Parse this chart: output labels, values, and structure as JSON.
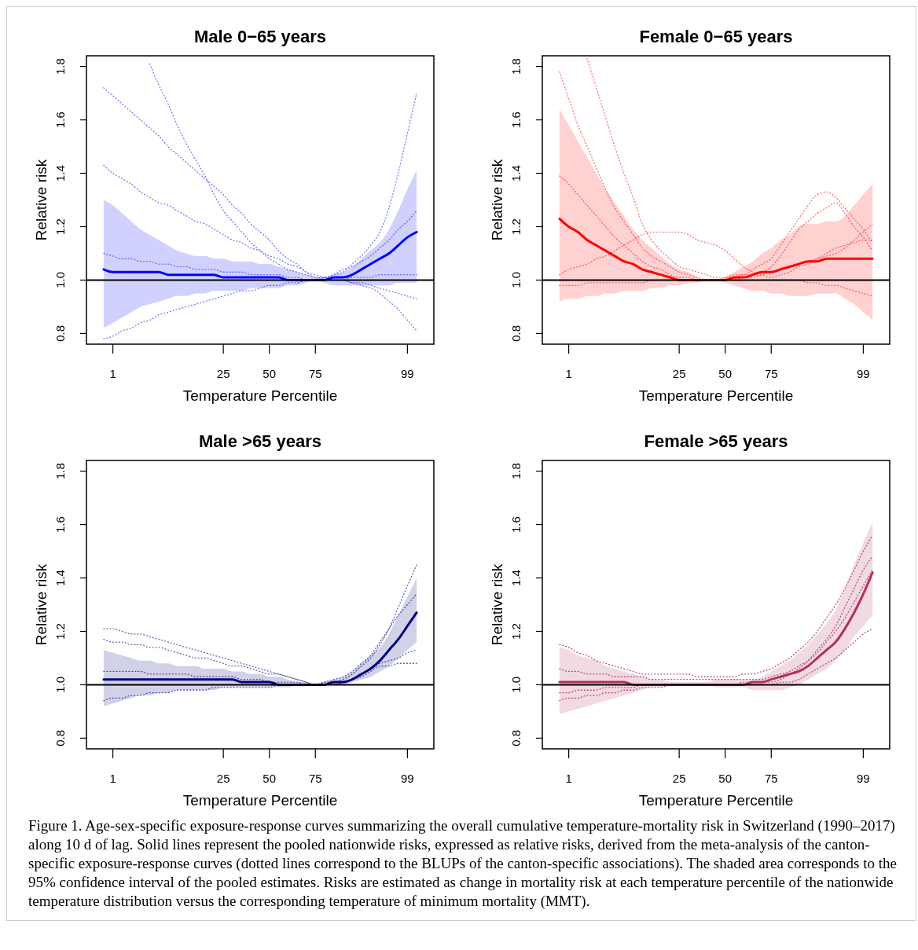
{
  "chart_data": [
    {
      "type": "line",
      "title": "Male 0−65 years",
      "xlabel": "Temperature Percentile",
      "ylabel": "Relative risk",
      "categories": [
        null,
        "1",
        null,
        null,
        null,
        null,
        null,
        null,
        null,
        null,
        null,
        null,
        null,
        "25",
        null,
        null,
        null,
        null,
        "50",
        null,
        null,
        null,
        null,
        "75",
        null,
        null,
        null,
        null,
        null,
        null,
        null,
        null,
        null,
        "99",
        null
      ],
      "ylim": [
        0.76,
        1.84
      ],
      "yticks": [
        {
          "value": 0.8,
          "label": "0.8"
        },
        {
          "value": 1.0,
          "label": "1.0"
        },
        {
          "value": 1.2,
          "label": "1.2"
        },
        {
          "value": 1.4,
          "label": "1.4"
        },
        {
          "value": 1.6,
          "label": "1.6"
        },
        {
          "value": 1.8,
          "label": "1.8"
        }
      ],
      "ref_lines": [
        {
          "axis": "y",
          "value": 1.0,
          "color": "#000000"
        }
      ],
      "series": [
        {
          "color": "#7777ff",
          "line_style": "dotted",
          "values": [
            1.72,
            1.69,
            1.66,
            1.63,
            1.6,
            1.57,
            1.54,
            1.5,
            1.47,
            1.44,
            1.41,
            1.38,
            1.35,
            1.32,
            1.28,
            1.25,
            1.21,
            1.18,
            1.15,
            1.11,
            1.08,
            1.06,
            1.03,
            1.02,
            1.01,
            1.0,
            1.0,
            1.01,
            1.01,
            1.01,
            1.02,
            1.02,
            1.02,
            1.02,
            1.02
          ]
        },
        {
          "color": "#7777ff",
          "line_style": "dotted",
          "values": [
            null,
            null,
            null,
            null,
            null,
            1.81,
            1.73,
            1.66,
            1.58,
            1.51,
            1.45,
            1.39,
            1.32,
            1.26,
            1.22,
            1.18,
            1.14,
            1.11,
            1.08,
            1.06,
            1.04,
            1.03,
            1.02,
            1.01,
            1.0,
            1.0,
            1.0,
            0.99,
            0.98,
            0.97,
            0.95,
            0.92,
            0.89,
            0.85,
            0.81
          ]
        },
        {
          "color": "#7777ff",
          "line_style": "dotted",
          "values": [
            1.1,
            1.09,
            1.08,
            1.08,
            1.07,
            1.07,
            1.06,
            1.06,
            1.05,
            1.05,
            1.04,
            1.04,
            1.04,
            1.03,
            1.03,
            1.03,
            1.02,
            1.02,
            1.02,
            1.02,
            1.01,
            1.01,
            1.0,
            1.0,
            1.01,
            1.02,
            1.03,
            1.06,
            1.09,
            1.13,
            1.18,
            1.27,
            1.4,
            1.55,
            1.7
          ]
        },
        {
          "color": "#7777ff",
          "line_style": "dotted",
          "values": [
            1.43,
            1.4,
            1.38,
            1.36,
            1.33,
            1.31,
            1.29,
            1.28,
            1.26,
            1.24,
            1.22,
            1.21,
            1.19,
            1.17,
            1.15,
            1.14,
            1.12,
            1.11,
            1.09,
            1.08,
            1.06,
            1.05,
            1.03,
            1.01,
            1.01,
            1.0,
            1.0,
            0.99,
            0.99,
            0.98,
            0.97,
            0.96,
            0.95,
            0.94,
            0.93
          ]
        },
        {
          "color": "#7777ff",
          "line_style": "dotted",
          "values": [
            0.78,
            0.79,
            0.81,
            0.82,
            0.84,
            0.85,
            0.87,
            0.88,
            0.89,
            0.9,
            0.91,
            0.92,
            0.93,
            0.94,
            0.95,
            0.96,
            0.96,
            0.97,
            0.98,
            0.98,
            0.99,
            0.99,
            1.0,
            1.0,
            1.01,
            1.02,
            1.04,
            1.05,
            1.07,
            1.09,
            1.12,
            1.15,
            1.19,
            1.22,
            1.26
          ]
        },
        {
          "color": "#0000ff",
          "line_style": "solid",
          "values": [
            1.04,
            1.03,
            1.03,
            1.03,
            1.03,
            1.03,
            1.03,
            1.02,
            1.02,
            1.02,
            1.02,
            1.02,
            1.02,
            1.01,
            1.01,
            1.01,
            1.01,
            1.01,
            1.01,
            1.01,
            1.0,
            1.0,
            1.0,
            1.0,
            1.0,
            1.01,
            1.01,
            1.02,
            1.04,
            1.06,
            1.08,
            1.1,
            1.13,
            1.16,
            1.18
          ],
          "lower": [
            0.82,
            0.84,
            0.86,
            0.88,
            0.9,
            0.91,
            0.92,
            0.93,
            0.94,
            0.94,
            0.95,
            0.95,
            0.96,
            0.96,
            0.96,
            0.96,
            0.97,
            0.97,
            0.97,
            0.97,
            0.98,
            0.98,
            0.99,
            1.0,
            0.99,
            0.98,
            0.98,
            0.98,
            0.98,
            0.98,
            0.98,
            0.98,
            0.99,
            0.99,
            0.99
          ],
          "upper": [
            1.3,
            1.28,
            1.25,
            1.22,
            1.19,
            1.17,
            1.15,
            1.13,
            1.11,
            1.1,
            1.09,
            1.09,
            1.08,
            1.08,
            1.07,
            1.07,
            1.07,
            1.06,
            1.06,
            1.05,
            1.04,
            1.03,
            1.02,
            1.01,
            1.01,
            1.02,
            1.03,
            1.05,
            1.08,
            1.11,
            1.14,
            1.19,
            1.26,
            1.34,
            1.41
          ]
        }
      ]
    },
    {
      "type": "line",
      "title": "Female 0−65 years",
      "xlabel": "Temperature Percentile",
      "ylabel": "Relative risk",
      "categories": [
        null,
        "1",
        null,
        null,
        null,
        null,
        null,
        null,
        null,
        null,
        null,
        null,
        null,
        "25",
        null,
        null,
        null,
        null,
        "50",
        null,
        null,
        null,
        null,
        "75",
        null,
        null,
        null,
        null,
        null,
        null,
        null,
        null,
        null,
        "99",
        null
      ],
      "ylim": [
        0.76,
        1.84
      ],
      "yticks": [
        {
          "value": 0.8,
          "label": "0.8"
        },
        {
          "value": 1.0,
          "label": "1.0"
        },
        {
          "value": 1.2,
          "label": "1.2"
        },
        {
          "value": 1.4,
          "label": "1.4"
        },
        {
          "value": 1.6,
          "label": "1.6"
        },
        {
          "value": 1.8,
          "label": "1.8"
        }
      ],
      "ref_lines": [
        {
          "axis": "y",
          "value": 1.0,
          "color": "#000000"
        }
      ],
      "series": [
        {
          "color": "#ff6f6f",
          "line_style": "dotted",
          "values": [
            null,
            null,
            null,
            1.83,
            1.72,
            1.61,
            1.5,
            1.4,
            1.31,
            1.21,
            1.15,
            1.11,
            1.08,
            1.05,
            1.04,
            1.03,
            1.02,
            1.01,
            1.01,
            1.01,
            1.02,
            1.02,
            1.03,
            1.05,
            1.09,
            1.14,
            1.19,
            1.22,
            1.25,
            1.27,
            1.29,
            1.25,
            1.2,
            1.16,
            1.11
          ]
        },
        {
          "color": "#ff6f6f",
          "line_style": "dotted",
          "values": [
            1.78,
            1.68,
            1.58,
            1.5,
            1.42,
            1.34,
            1.27,
            1.22,
            1.17,
            1.12,
            1.09,
            1.07,
            1.05,
            1.03,
            1.02,
            1.01,
            1.0,
            1.0,
            1.01,
            1.02,
            1.02,
            1.04,
            1.06,
            1.08,
            1.13,
            1.18,
            1.23,
            1.28,
            1.32,
            1.33,
            1.31,
            1.27,
            1.23,
            1.19,
            1.14
          ]
        },
        {
          "color": "#ff6f6f",
          "line_style": "dotted",
          "values": [
            1.02,
            1.04,
            1.05,
            1.06,
            1.08,
            1.09,
            1.11,
            1.13,
            1.15,
            1.17,
            1.18,
            1.18,
            1.18,
            1.18,
            1.17,
            1.15,
            1.14,
            1.13,
            1.11,
            1.08,
            1.05,
            1.03,
            1.02,
            1.01,
            1.02,
            1.03,
            1.05,
            1.06,
            1.08,
            1.1,
            1.12,
            1.13,
            1.14,
            1.15,
            1.15
          ]
        },
        {
          "color": "#ff6f6f",
          "line_style": "dotted",
          "values": [
            1.39,
            1.36,
            1.32,
            1.28,
            1.24,
            1.2,
            1.16,
            1.13,
            1.1,
            1.07,
            1.05,
            1.04,
            1.02,
            1.01,
            1.01,
            1.0,
            1.0,
            1.0,
            1.0,
            1.0,
            1.01,
            1.01,
            1.02,
            1.03,
            1.04,
            1.05,
            1.06,
            1.07,
            1.08,
            1.09,
            1.1,
            1.12,
            1.15,
            1.18,
            1.21
          ]
        },
        {
          "color": "#ff6f6f",
          "line_style": "dotted",
          "values": [
            0.98,
            0.98,
            0.98,
            0.99,
            0.99,
            0.99,
            0.99,
            0.99,
            0.99,
            0.99,
            1.0,
            1.0,
            1.0,
            1.0,
            1.0,
            1.0,
            1.0,
            1.0,
            1.0,
            1.0,
            1.0,
            1.0,
            1.0,
            1.0,
            1.0,
            1.0,
            1.0,
            0.99,
            0.99,
            0.98,
            0.98,
            0.97,
            0.96,
            0.95,
            0.94
          ]
        },
        {
          "color": "#ff0000",
          "line_style": "solid",
          "values": [
            1.23,
            1.2,
            1.18,
            1.15,
            1.13,
            1.11,
            1.09,
            1.07,
            1.06,
            1.04,
            1.03,
            1.02,
            1.01,
            1.0,
            1.0,
            1.0,
            1.0,
            1.0,
            1.0,
            1.01,
            1.01,
            1.02,
            1.03,
            1.03,
            1.04,
            1.05,
            1.06,
            1.07,
            1.07,
            1.08,
            1.08,
            1.08,
            1.08,
            1.08,
            1.08
          ],
          "lower": [
            0.92,
            0.93,
            0.93,
            0.94,
            0.94,
            0.95,
            0.95,
            0.96,
            0.96,
            0.96,
            0.97,
            0.97,
            0.98,
            0.98,
            0.99,
            0.99,
            1.0,
            1.0,
            0.99,
            0.98,
            0.97,
            0.96,
            0.96,
            0.95,
            0.95,
            0.94,
            0.94,
            0.94,
            0.95,
            0.95,
            0.95,
            0.93,
            0.91,
            0.88,
            0.85
          ],
          "upper": [
            1.64,
            1.58,
            1.52,
            1.46,
            1.4,
            1.34,
            1.29,
            1.24,
            1.19,
            1.15,
            1.12,
            1.09,
            1.06,
            1.04,
            1.03,
            1.01,
            1.0,
            1.0,
            1.01,
            1.03,
            1.05,
            1.07,
            1.1,
            1.12,
            1.15,
            1.17,
            1.2,
            1.21,
            1.21,
            1.22,
            1.22,
            1.24,
            1.28,
            1.32,
            1.36
          ]
        }
      ]
    },
    {
      "type": "line",
      "title": "Male >65 years",
      "xlabel": "Temperature Percentile",
      "ylabel": "Relative risk",
      "categories": [
        null,
        "1",
        null,
        null,
        null,
        null,
        null,
        null,
        null,
        null,
        null,
        null,
        null,
        "25",
        null,
        null,
        null,
        null,
        "50",
        null,
        null,
        null,
        null,
        "75",
        null,
        null,
        null,
        null,
        null,
        null,
        null,
        null,
        null,
        "99",
        null
      ],
      "ylim": [
        0.76,
        1.84
      ],
      "yticks": [
        {
          "value": 0.8,
          "label": "0.8"
        },
        {
          "value": 1.0,
          "label": "1.0"
        },
        {
          "value": 1.2,
          "label": "1.2"
        },
        {
          "value": 1.4,
          "label": "1.4"
        },
        {
          "value": 1.6,
          "label": "1.6"
        },
        {
          "value": 1.8,
          "label": "1.8"
        }
      ],
      "ref_lines": [
        {
          "axis": "y",
          "value": 1.0,
          "color": "#000000"
        }
      ],
      "series": [
        {
          "color": "#6060b0",
          "line_style": "dotted",
          "values": [
            1.21,
            1.21,
            1.2,
            1.19,
            1.19,
            1.18,
            1.17,
            1.16,
            1.15,
            1.14,
            1.13,
            1.12,
            1.11,
            1.1,
            1.09,
            1.08,
            1.07,
            1.06,
            1.05,
            1.04,
            1.03,
            1.02,
            1.01,
            1.0,
            1.01,
            1.01,
            1.02,
            1.04,
            1.07,
            1.1,
            1.15,
            1.21,
            1.29,
            1.37,
            1.45
          ]
        },
        {
          "color": "#6060b0",
          "line_style": "dotted",
          "values": [
            1.17,
            1.16,
            1.16,
            1.15,
            1.15,
            1.14,
            1.14,
            1.13,
            1.12,
            1.11,
            1.1,
            1.1,
            1.09,
            1.08,
            1.07,
            1.07,
            1.06,
            1.05,
            1.04,
            1.04,
            1.03,
            1.02,
            1.01,
            1.0,
            1.0,
            1.0,
            1.01,
            1.02,
            1.03,
            1.05,
            1.07,
            1.07,
            1.08,
            1.08,
            1.08
          ]
        },
        {
          "color": "#6060b0",
          "line_style": "dotted",
          "values": [
            0.94,
            0.95,
            0.95,
            0.96,
            0.96,
            0.97,
            0.97,
            0.97,
            0.98,
            0.98,
            0.98,
            0.98,
            0.99,
            0.99,
            0.99,
            0.99,
            0.99,
            0.99,
            0.99,
            1.0,
            1.0,
            1.0,
            1.0,
            1.0,
            1.0,
            1.0,
            1.01,
            1.02,
            1.04,
            1.06,
            1.08,
            1.09,
            1.1,
            1.12,
            1.13
          ]
        },
        {
          "color": "#6060b0",
          "line_style": "dotted",
          "values": [
            1.05,
            1.05,
            1.05,
            1.05,
            1.05,
            1.04,
            1.04,
            1.04,
            1.04,
            1.04,
            1.03,
            1.03,
            1.03,
            1.03,
            1.03,
            1.02,
            1.02,
            1.02,
            1.01,
            1.01,
            1.01,
            1.01,
            1.0,
            1.0,
            1.01,
            1.02,
            1.03,
            1.05,
            1.08,
            1.11,
            1.16,
            1.21,
            1.26,
            1.3,
            1.34
          ]
        },
        {
          "color": "#000080",
          "line_style": "solid",
          "values": [
            1.02,
            1.02,
            1.02,
            1.02,
            1.02,
            1.02,
            1.02,
            1.02,
            1.02,
            1.02,
            1.02,
            1.02,
            1.02,
            1.02,
            1.02,
            1.01,
            1.01,
            1.01,
            1.01,
            1.0,
            1.0,
            1.0,
            1.0,
            1.0,
            1.0,
            1.01,
            1.01,
            1.02,
            1.04,
            1.06,
            1.09,
            1.13,
            1.17,
            1.22,
            1.27
          ],
          "lower": [
            0.92,
            0.93,
            0.94,
            0.95,
            0.96,
            0.96,
            0.97,
            0.97,
            0.98,
            0.98,
            0.98,
            0.98,
            0.98,
            0.99,
            0.99,
            0.99,
            0.99,
            0.99,
            0.99,
            0.99,
            0.99,
            1.0,
            1.0,
            1.0,
            1.0,
            1.0,
            1.0,
            1.01,
            1.02,
            1.03,
            1.05,
            1.07,
            1.1,
            1.13,
            1.16
          ],
          "upper": [
            1.13,
            1.12,
            1.11,
            1.1,
            1.09,
            1.09,
            1.08,
            1.08,
            1.07,
            1.07,
            1.07,
            1.06,
            1.06,
            1.06,
            1.05,
            1.05,
            1.04,
            1.04,
            1.03,
            1.03,
            1.02,
            1.01,
            1.01,
            1.0,
            1.01,
            1.02,
            1.03,
            1.05,
            1.08,
            1.11,
            1.14,
            1.19,
            1.26,
            1.33,
            1.4
          ]
        }
      ]
    },
    {
      "type": "line",
      "title": "Female >65 years",
      "xlabel": "Temperature Percentile",
      "ylabel": "Relative risk",
      "categories": [
        null,
        "1",
        null,
        null,
        null,
        null,
        null,
        null,
        null,
        null,
        null,
        null,
        null,
        "25",
        null,
        null,
        null,
        null,
        "50",
        null,
        null,
        null,
        null,
        "75",
        null,
        null,
        null,
        null,
        null,
        null,
        null,
        null,
        null,
        "99",
        null
      ],
      "ylim": [
        0.76,
        1.84
      ],
      "yticks": [
        {
          "value": 0.8,
          "label": "0.8"
        },
        {
          "value": 1.0,
          "label": "1.0"
        },
        {
          "value": 1.2,
          "label": "1.2"
        },
        {
          "value": 1.4,
          "label": "1.4"
        },
        {
          "value": 1.6,
          "label": "1.6"
        },
        {
          "value": 1.8,
          "label": "1.8"
        }
      ],
      "ref_lines": [
        {
          "axis": "y",
          "value": 1.0,
          "color": "#000000"
        }
      ],
      "annotations": [
        "Figure 1. Age-sex-specific exposure-response curves summarizing the overall cumulative temperature-mortality risk in Switzerland (1990–2017) along 10 d of lag. Solid lines represent the pooled nationwide risks, expressed as relative risks, derived from the meta-analysis of the canton-specific exposure-response curves (dotted lines correspond to the BLUPs of the canton-specific associations). The shaded area corresponds to the 95% confidence interval of the pooled estimates. Risks are estimated as change in mortality risk at each temperature percentile of the nationwide temperature distribution versus the corresponding temperature of minimum mortality (MMT)."
      ],
      "series": [
        {
          "color": "#c0507a",
          "line_style": "dotted",
          "values": [
            1.15,
            1.14,
            1.12,
            1.11,
            1.09,
            1.08,
            1.07,
            1.06,
            1.05,
            1.04,
            1.04,
            1.04,
            1.04,
            1.04,
            1.04,
            1.03,
            1.03,
            1.03,
            1.03,
            1.03,
            1.04,
            1.04,
            1.05,
            1.06,
            1.08,
            1.1,
            1.13,
            1.16,
            1.2,
            1.25,
            1.3,
            1.36,
            1.43,
            1.5,
            1.56
          ]
        },
        {
          "color": "#c0507a",
          "line_style": "dotted",
          "values": [
            1.06,
            1.05,
            1.05,
            1.04,
            1.04,
            1.04,
            1.03,
            1.03,
            1.03,
            1.03,
            1.02,
            1.02,
            1.02,
            1.02,
            1.02,
            1.02,
            1.02,
            1.02,
            1.02,
            1.02,
            1.02,
            1.02,
            1.02,
            1.03,
            1.04,
            1.05,
            1.07,
            1.09,
            1.12,
            1.16,
            1.2,
            1.25,
            1.31,
            1.37,
            1.43
          ]
        },
        {
          "color": "#c0507a",
          "line_style": "dotted",
          "values": [
            0.94,
            0.95,
            0.95,
            0.96,
            0.96,
            0.97,
            0.97,
            0.98,
            0.98,
            0.99,
            0.99,
            0.99,
            1.0,
            1.0,
            1.0,
            1.0,
            1.0,
            1.0,
            1.0,
            1.0,
            1.0,
            1.0,
            1.0,
            1.0,
            1.01,
            1.01,
            1.02,
            1.04,
            1.06,
            1.08,
            1.1,
            1.13,
            1.16,
            1.19,
            1.21
          ]
        },
        {
          "color": "#c0507a",
          "line_style": "dotted",
          "values": [
            0.97,
            0.97,
            0.98,
            0.98,
            0.98,
            0.99,
            0.99,
            0.99,
            0.99,
            1.0,
            1.0,
            1.0,
            1.0,
            1.0,
            1.0,
            1.0,
            1.0,
            1.0,
            1.0,
            1.0,
            1.01,
            1.01,
            1.01,
            1.01,
            1.02,
            1.04,
            1.06,
            1.09,
            1.13,
            1.17,
            1.22,
            1.29,
            1.36,
            1.43,
            1.48
          ]
        },
        {
          "color": "#b03060",
          "line_style": "solid",
          "values": [
            1.01,
            1.01,
            1.01,
            1.01,
            1.01,
            1.01,
            1.01,
            1.01,
            1.0,
            1.0,
            1.0,
            1.0,
            1.0,
            1.0,
            1.0,
            1.0,
            1.0,
            1.0,
            1.0,
            1.0,
            1.0,
            1.01,
            1.01,
            1.02,
            1.03,
            1.04,
            1.05,
            1.07,
            1.1,
            1.13,
            1.16,
            1.21,
            1.27,
            1.34,
            1.42
          ],
          "lower": [
            0.89,
            0.9,
            0.91,
            0.92,
            0.93,
            0.94,
            0.95,
            0.96,
            0.97,
            0.98,
            0.99,
            0.99,
            1.0,
            1.0,
            1.0,
            1.0,
            1.0,
            0.99,
            0.99,
            0.99,
            0.99,
            0.98,
            0.98,
            0.98,
            0.98,
            0.99,
            1.0,
            1.02,
            1.04,
            1.06,
            1.09,
            1.13,
            1.18,
            1.22,
            1.26
          ],
          "upper": [
            1.14,
            1.13,
            1.11,
            1.1,
            1.09,
            1.07,
            1.06,
            1.05,
            1.04,
            1.03,
            1.02,
            1.02,
            1.01,
            1.01,
            1.01,
            1.01,
            1.01,
            1.02,
            1.02,
            1.02,
            1.02,
            1.02,
            1.03,
            1.05,
            1.07,
            1.09,
            1.12,
            1.15,
            1.19,
            1.23,
            1.28,
            1.36,
            1.45,
            1.53,
            1.61
          ]
        }
      ]
    }
  ]
}
